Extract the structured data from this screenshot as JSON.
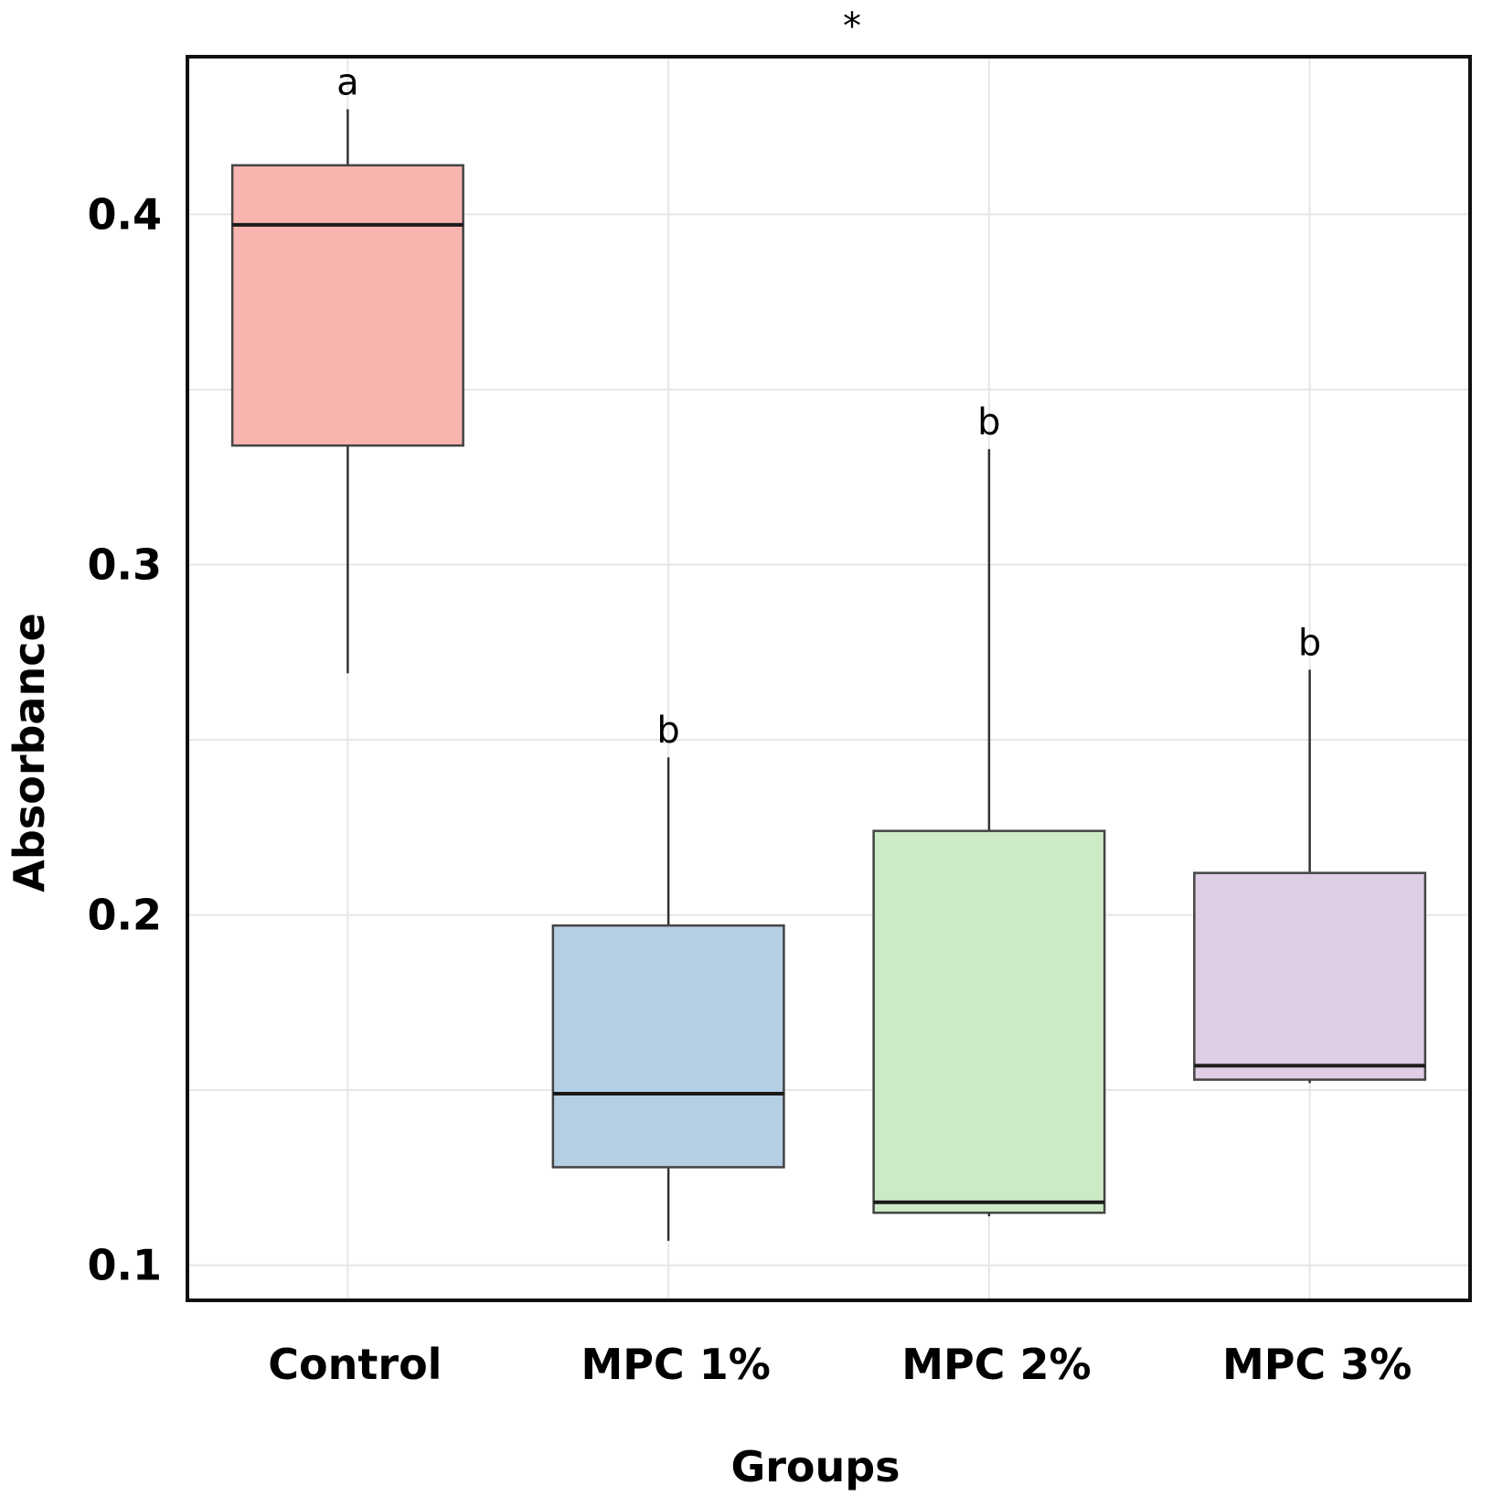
{
  "chart_data": {
    "type": "boxplot",
    "title": "",
    "significance_marker": "*",
    "xlabel": "Groups",
    "ylabel": "Absorbance",
    "ylim": [
      0.09,
      0.445
    ],
    "grid": true,
    "y_ticks": [
      0.1,
      0.2,
      0.3,
      0.4
    ],
    "y_tick_labels": [
      "0.1",
      "0.2",
      "0.3",
      "0.4"
    ],
    "categories": [
      "Control",
      "MPC 1%",
      "MPC 2%",
      "MPC 3%"
    ],
    "boxes": [
      {
        "name": "Control",
        "whisker_low": 0.269,
        "q1": 0.334,
        "median": 0.397,
        "q3": 0.414,
        "whisker_high": 0.43,
        "letter": "a",
        "color": "#F8B4AE"
      },
      {
        "name": "MPC 1%",
        "whisker_low": 0.107,
        "q1": 0.128,
        "median": 0.149,
        "q3": 0.197,
        "whisker_high": 0.245,
        "letter": "b",
        "color": "#B4CEE4"
      },
      {
        "name": "MPC 2%",
        "whisker_low": 0.114,
        "q1": 0.115,
        "median": 0.118,
        "q3": 0.224,
        "whisker_high": 0.333,
        "letter": "b",
        "color": "#CDEAC6"
      },
      {
        "name": "MPC 3%",
        "whisker_low": 0.152,
        "q1": 0.153,
        "median": 0.157,
        "q3": 0.212,
        "whisker_high": 0.27,
        "letter": "b",
        "color": "#DECDE4"
      }
    ]
  }
}
